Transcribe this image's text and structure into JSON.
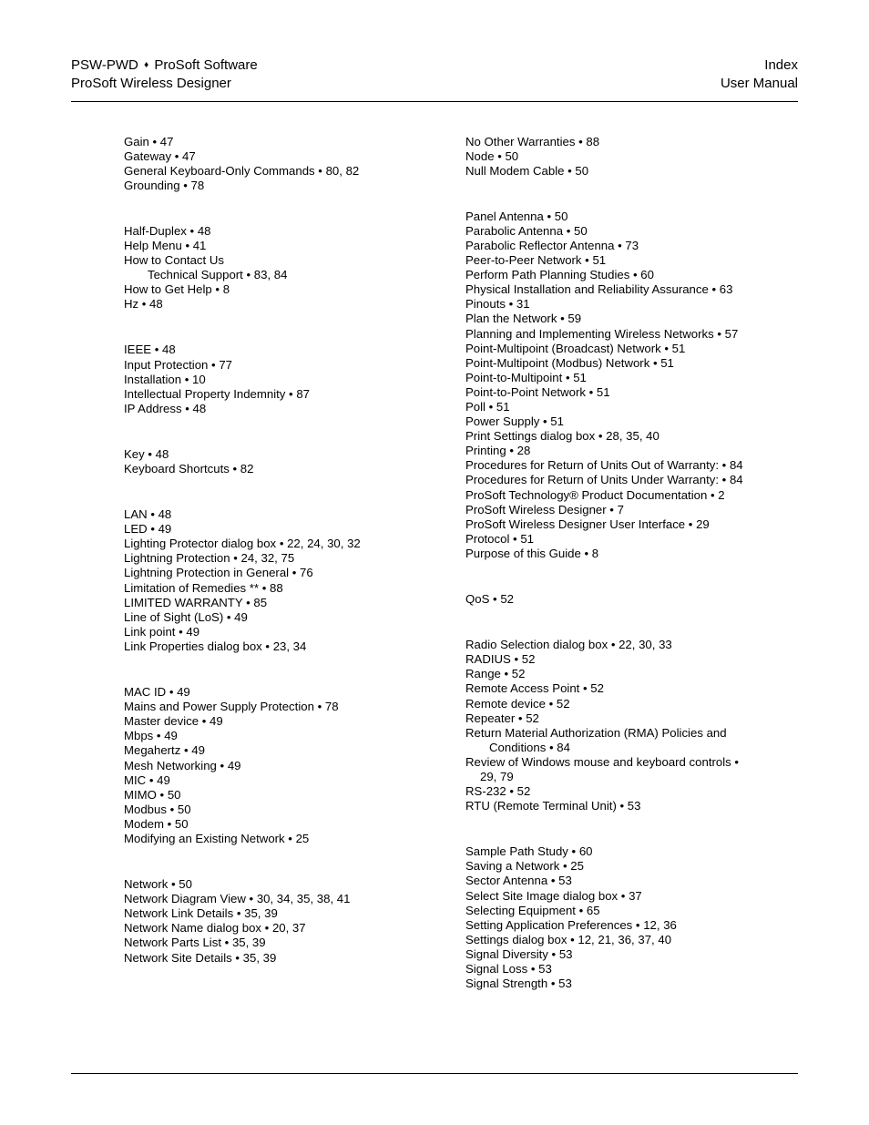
{
  "header": {
    "left_line1_a": "PSW-PWD",
    "left_line1_b": "ProSoft Software",
    "left_line2": "ProSoft Wireless Designer",
    "right_line1": "Index",
    "right_line2": "User Manual"
  },
  "left": {
    "g1": [
      "Gain • 47",
      "Gateway • 47",
      "General Keyboard-Only Commands • 80, 82",
      "Grounding • 78"
    ],
    "g2": [
      "Half-Duplex • 48",
      "Help Menu • 41",
      "How to Contact Us"
    ],
    "g2_sub": "Technical Support • 83, 84",
    "g2b": [
      "How to Get Help • 8",
      "Hz • 48"
    ],
    "g3": [
      "IEEE • 48",
      "Input Protection • 77",
      "Installation • 10",
      "Intellectual Property Indemnity • 87",
      "IP Address • 48"
    ],
    "g4": [
      "Key • 48",
      "Keyboard Shortcuts • 82"
    ],
    "g5": [
      "LAN • 48",
      "LED • 49",
      "Lighting Protector dialog box • 22, 24, 30, 32",
      "Lightning Protection • 24, 32, 75",
      "Lightning Protection in General • 76",
      "Limitation of Remedies ** • 88",
      "LIMITED WARRANTY • 85",
      "Line of Sight (LoS) • 49",
      "Link point • 49",
      "Link Properties dialog box • 23, 34"
    ],
    "g6": [
      "MAC ID • 49",
      "Mains and Power Supply Protection • 78",
      "Master device • 49",
      "Mbps • 49",
      "Megahertz • 49",
      "Mesh Networking • 49",
      "MIC • 49",
      "MIMO • 50",
      "Modbus • 50",
      "Modem • 50",
      "Modifying an Existing Network • 25"
    ],
    "g7": [
      "Network • 50",
      "Network Diagram View • 30, 34, 35, 38, 41",
      "Network Link Details • 35, 39",
      "Network Name dialog box • 20, 37",
      "Network Parts List • 35, 39",
      "Network Site Details • 35, 39"
    ]
  },
  "right": {
    "g0": [
      "No Other Warranties • 88",
      "Node • 50",
      "Null Modem Cable • 50"
    ],
    "g1": [
      "Panel Antenna • 50",
      "Parabolic Antenna • 50",
      "Parabolic Reflector Antenna • 73",
      "Peer-to-Peer Network • 51",
      "Perform Path Planning Studies • 60",
      "Physical Installation and Reliability Assurance • 63",
      "Pinouts • 31",
      "Plan the Network • 59",
      "Planning and Implementing Wireless Networks • 57",
      "Point-Multipoint (Broadcast) Network • 51",
      "Point-Multipoint (Modbus) Network • 51",
      "Point-to-Multipoint • 51",
      "Point-to-Point Network • 51",
      "Poll • 51",
      "Power Supply • 51",
      "Print Settings dialog box • 28, 35, 40",
      "Printing • 28",
      "Procedures for Return of Units Out of Warranty: • 84",
      "Procedures for Return of Units Under Warranty: • 84",
      "ProSoft Technology® Product Documentation • 2",
      "ProSoft Wireless Designer • 7",
      "ProSoft Wireless Designer User Interface • 29",
      "Protocol • 51",
      "Purpose of this Guide • 8"
    ],
    "g2": [
      "QoS • 52"
    ],
    "g3": [
      "Radio Selection dialog box • 22, 30, 33",
      "RADIUS • 52",
      "Range • 52",
      "Remote Access Point • 52",
      "Remote device • 52",
      "Repeater • 52",
      "Return Material Authorization (RMA) Policies and"
    ],
    "g3_sub": "Conditions • 84",
    "g3b": [
      "Review of Windows mouse and keyboard controls •"
    ],
    "g3b_sub": "29, 79",
    "g3c": [
      "RS-232 • 52",
      "RTU (Remote Terminal Unit) • 53"
    ],
    "g4": [
      "Sample Path Study • 60",
      "Saving a Network • 25",
      "Sector Antenna • 53",
      "Select Site Image dialog box • 37",
      "Selecting Equipment • 65",
      "Setting Application Preferences • 12, 36",
      "Settings dialog box • 12, 21, 36, 37, 40",
      "Signal Diversity • 53",
      "Signal Loss • 53",
      "Signal Strength • 53"
    ]
  }
}
